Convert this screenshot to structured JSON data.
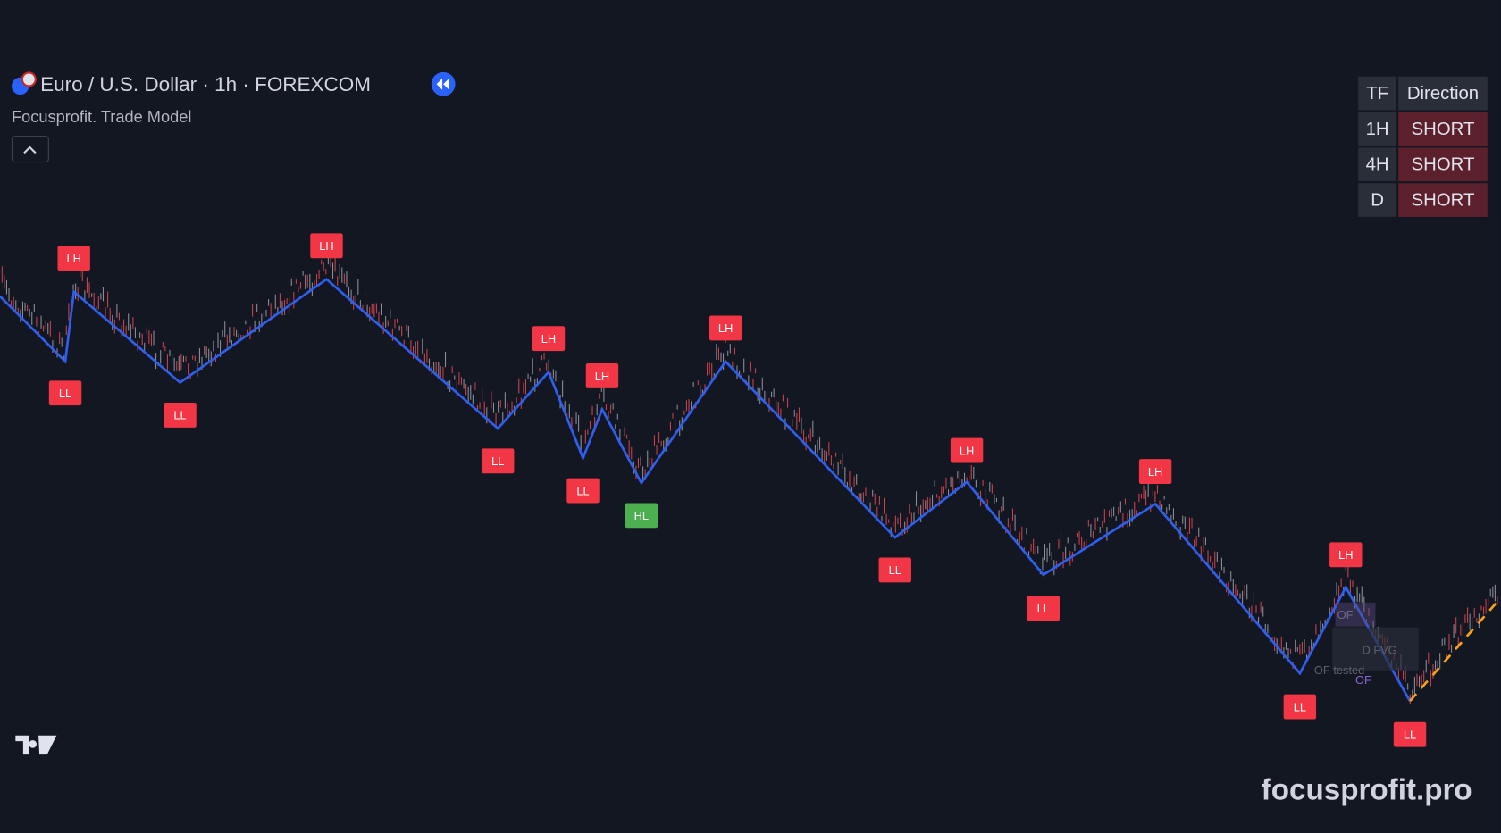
{
  "header": {
    "title": "Euro / U.S. Dollar · 1h · FOREXCOM",
    "indicator": "Focusprofit. Trade Model"
  },
  "table": {
    "columns": [
      "TF",
      "Direction"
    ],
    "rows": [
      [
        "1H",
        "SHORT"
      ],
      [
        "4H",
        "SHORT"
      ],
      [
        "D",
        "SHORT"
      ]
    ]
  },
  "pivot_labels": [
    "LH",
    "LL",
    "LL",
    "LH",
    "LH",
    "LH",
    "LL",
    "LL",
    "HL",
    "LH",
    "LL",
    "LH",
    "LL",
    "LH",
    "LH",
    "LL",
    "LL"
  ],
  "annotations": [
    "OF",
    "D FVG",
    "OF tested",
    "OF"
  ],
  "watermark": "focusprofit.pro"
}
